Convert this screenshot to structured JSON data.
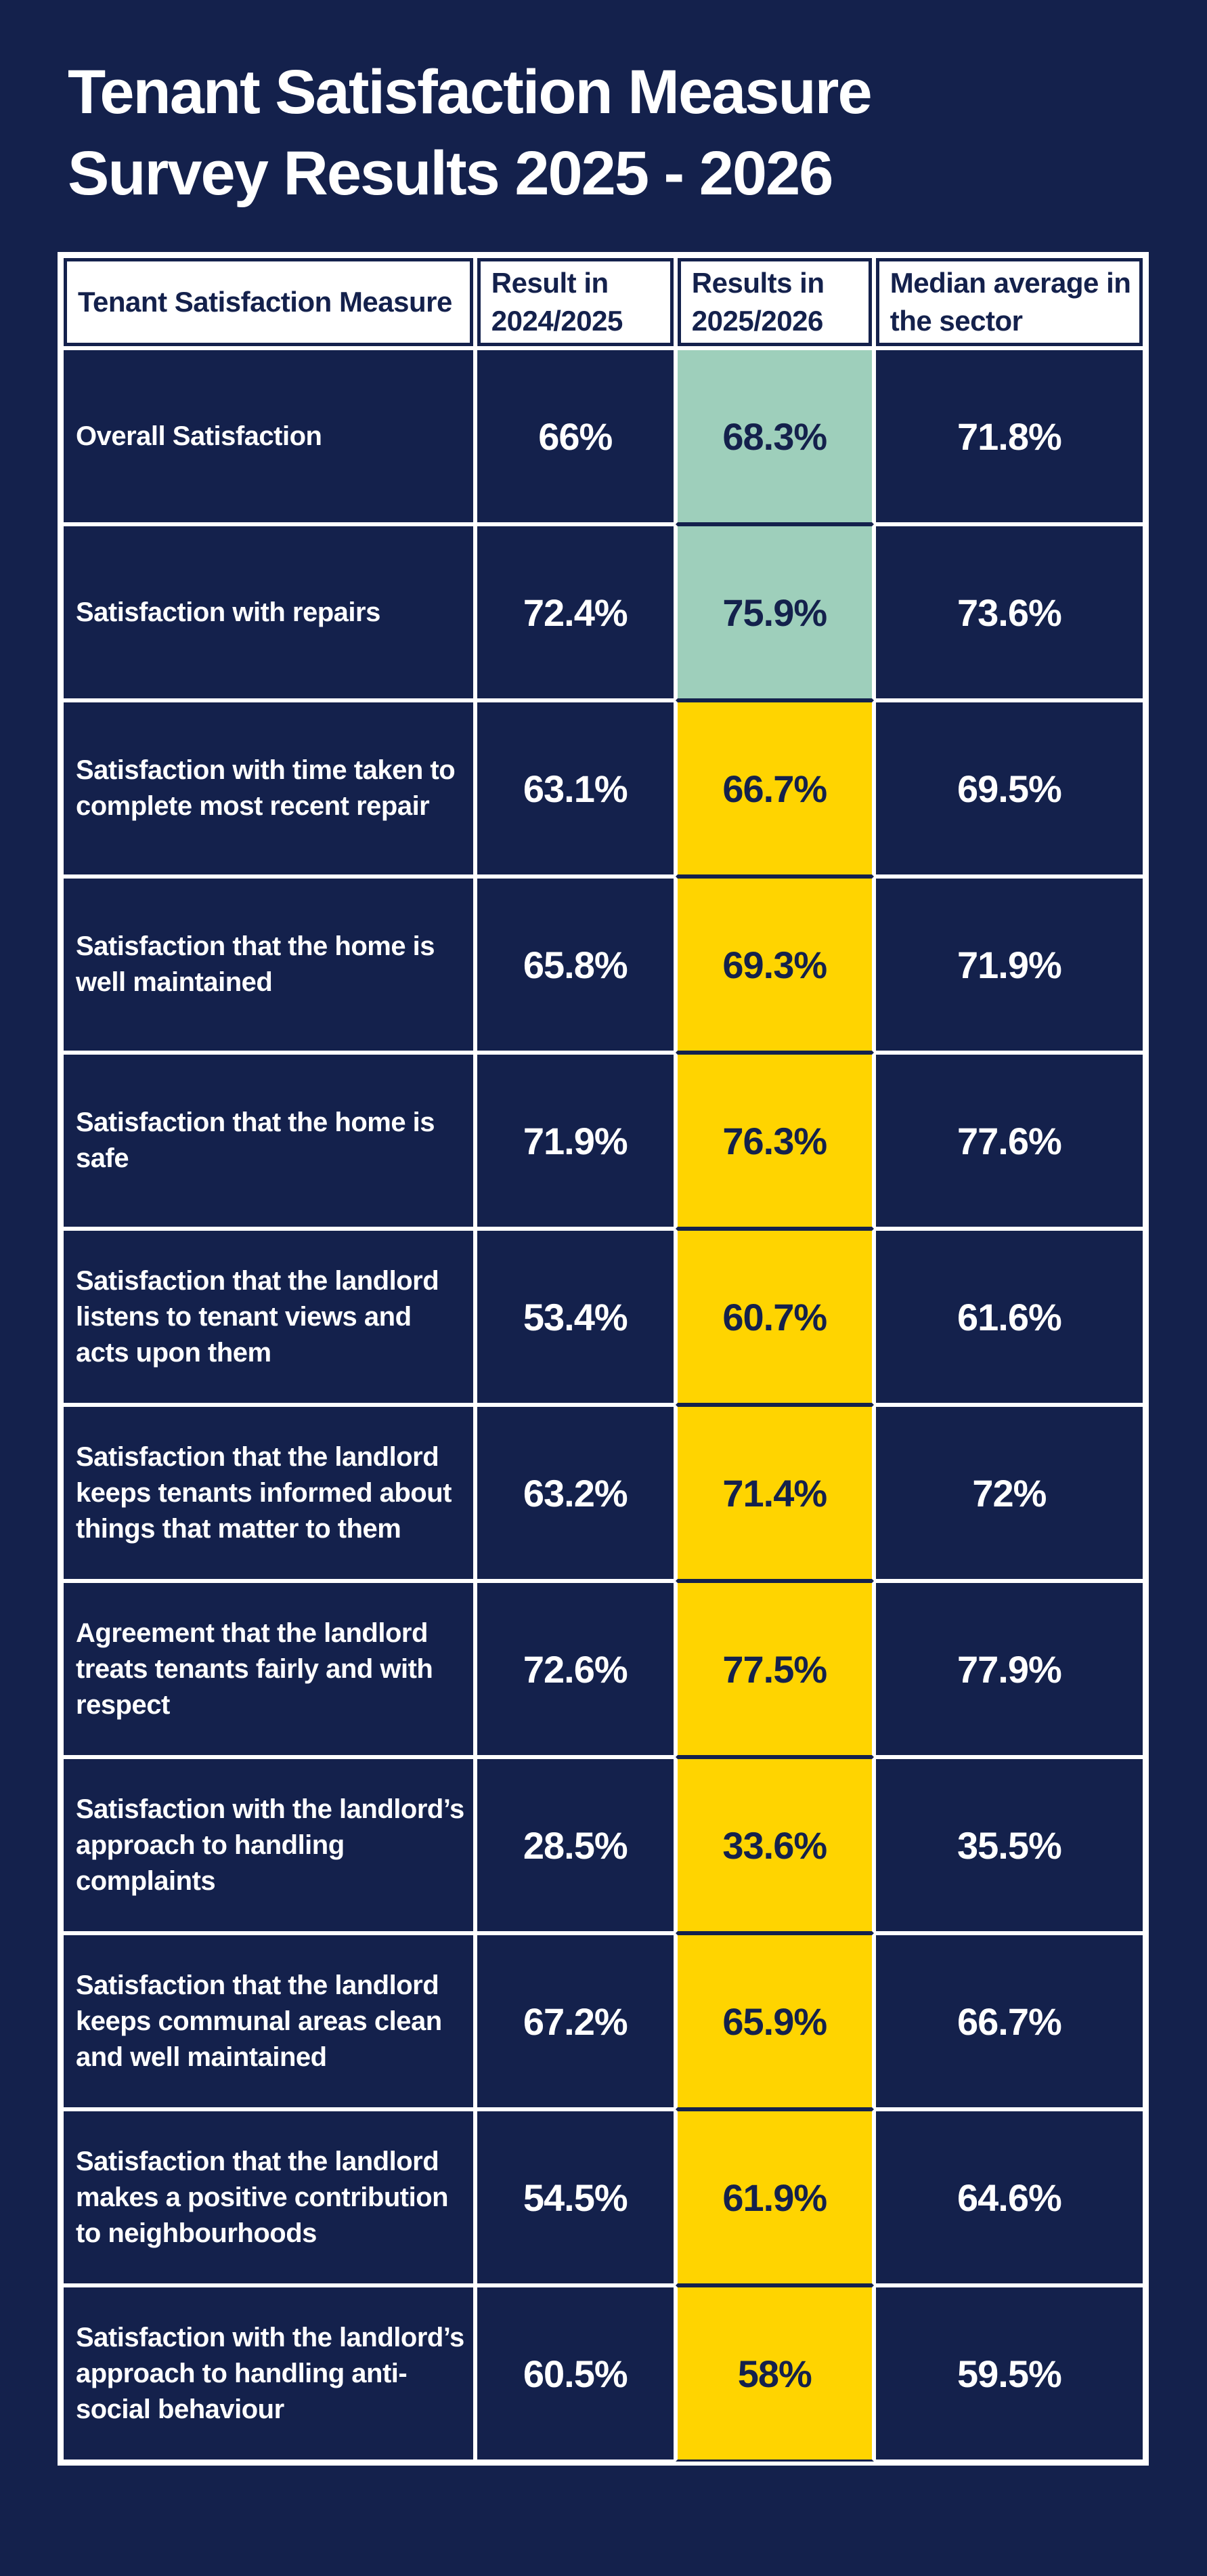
{
  "page_title": {
    "line1": "Tenant Satisfaction Measure",
    "line2": "Survey Results 2025 - 2026"
  },
  "colors": {
    "background_navy": "#14214c",
    "grid_white": "#ffffff",
    "highlight_teal": "#9ecfbb",
    "highlight_yellow": "#ffd400",
    "text_white": "#ffffff",
    "text_navy": "#14214c"
  },
  "table": {
    "headers": [
      "Tenant Satisfaction Measure",
      "Result in 2024/2025",
      "Results in 2025/2026",
      "Median average in the sector"
    ],
    "rows": [
      {
        "measure": "Overall Satisfaction",
        "result_2024_2025": "66%",
        "result_2025_2026": "68.3%",
        "median_sector": "71.8%",
        "highlight": "teal"
      },
      {
        "measure": "Satisfaction with repairs",
        "result_2024_2025": "72.4%",
        "result_2025_2026": "75.9%",
        "median_sector": "73.6%",
        "highlight": "teal"
      },
      {
        "measure": "Satisfaction with time taken to complete most recent repair",
        "result_2024_2025": "63.1%",
        "result_2025_2026": "66.7%",
        "median_sector": "69.5%",
        "highlight": "yellow"
      },
      {
        "measure": "Satisfaction that the home is well maintained",
        "result_2024_2025": "65.8%",
        "result_2025_2026": "69.3%",
        "median_sector": "71.9%",
        "highlight": "yellow"
      },
      {
        "measure": "Satisfaction that the home is safe",
        "result_2024_2025": "71.9%",
        "result_2025_2026": "76.3%",
        "median_sector": "77.6%",
        "highlight": "yellow"
      },
      {
        "measure": "Satisfaction that the landlord listens to tenant views and acts upon them",
        "result_2024_2025": "53.4%",
        "result_2025_2026": "60.7%",
        "median_sector": "61.6%",
        "highlight": "yellow"
      },
      {
        "measure": "Satisfaction that the landlord keeps tenants informed about things that matter to them",
        "result_2024_2025": "63.2%",
        "result_2025_2026": "71.4%",
        "median_sector": "72%",
        "highlight": "yellow"
      },
      {
        "measure": "Agreement that the landlord treats tenants fairly and with respect",
        "result_2024_2025": "72.6%",
        "result_2025_2026": "77.5%",
        "median_sector": "77.9%",
        "highlight": "yellow"
      },
      {
        "measure": "Satisfaction with the landlord’s approach to handling complaints",
        "result_2024_2025": "28.5%",
        "result_2025_2026": "33.6%",
        "median_sector": "35.5%",
        "highlight": "yellow"
      },
      {
        "measure": "Satisfaction that the landlord keeps communal areas clean and well maintained",
        "result_2024_2025": "67.2%",
        "result_2025_2026": "65.9%",
        "median_sector": "66.7%",
        "highlight": "yellow"
      },
      {
        "measure": "Satisfaction that the landlord makes a positive contribution to neighbourhoods",
        "result_2024_2025": "54.5%",
        "result_2025_2026": "61.9%",
        "median_sector": "64.6%",
        "highlight": "yellow"
      },
      {
        "measure": "Satisfaction with the landlord’s approach to handling anti-social behaviour",
        "result_2024_2025": "60.5%",
        "result_2025_2026": "58%",
        "median_sector": "59.5%",
        "highlight": "yellow"
      }
    ]
  },
  "chart_data": {
    "type": "table",
    "title": "Tenant Satisfaction Measure Survey Results 2025 - 2026",
    "columns": [
      "Tenant Satisfaction Measure",
      "Result in 2024/2025",
      "Results in 2025/2026",
      "Median average in the sector"
    ],
    "categories": [
      "Overall Satisfaction",
      "Satisfaction with repairs",
      "Satisfaction with time taken to complete most recent repair",
      "Satisfaction that the home is well maintained",
      "Satisfaction that the home is safe",
      "Satisfaction that the landlord listens to tenant views and acts upon them",
      "Satisfaction that the landlord keeps tenants informed about things that matter to them",
      "Agreement that the landlord treats tenants fairly and with respect",
      "Satisfaction with the landlord’s approach to handling complaints",
      "Satisfaction that the landlord keeps communal areas clean and well maintained",
      "Satisfaction that the landlord makes a positive contribution to neighbourhoods",
      "Satisfaction with the landlord’s approach to handling anti-social behaviour"
    ],
    "series": [
      {
        "name": "Result in 2024/2025",
        "values": [
          66,
          72.4,
          63.1,
          65.8,
          71.9,
          53.4,
          63.2,
          72.6,
          28.5,
          67.2,
          54.5,
          60.5
        ]
      },
      {
        "name": "Results in 2025/2026",
        "values": [
          68.3,
          75.9,
          66.7,
          69.3,
          76.3,
          60.7,
          71.4,
          77.5,
          33.6,
          65.9,
          61.9,
          58
        ]
      },
      {
        "name": "Median average in the sector",
        "values": [
          71.8,
          73.6,
          69.5,
          71.9,
          77.6,
          61.6,
          72,
          77.9,
          35.5,
          66.7,
          64.6,
          59.5
        ]
      }
    ],
    "unit": "%",
    "highlight_colors": {
      "rows_0_1": "#9ecfbb",
      "rows_2_11": "#ffd400"
    }
  }
}
